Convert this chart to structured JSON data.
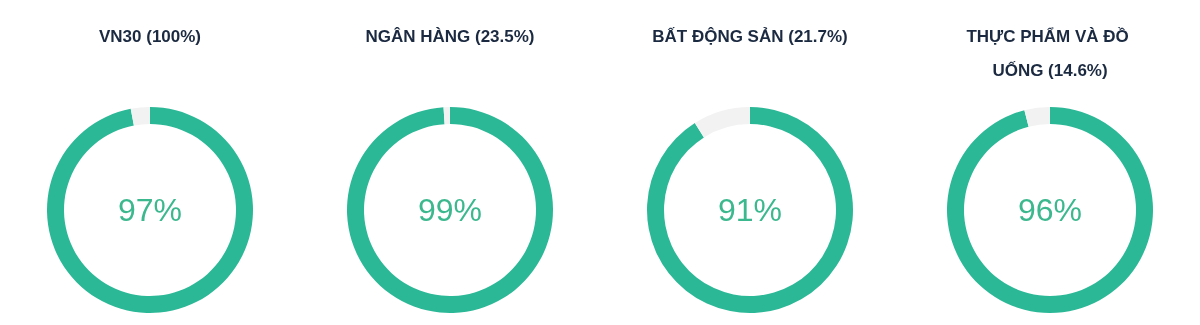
{
  "chart_data": [
    {
      "type": "donut",
      "title": "VN30 (100%)",
      "categories": [
        null,
        null
      ],
      "values": [
        97,
        3
      ],
      "colors": [
        "#2bb896",
        "#f2f2f2"
      ],
      "value_labels": [
        "97%",
        null
      ]
    },
    {
      "type": "donut",
      "title": "NGÂN HÀNG (23.5%)",
      "categories": [
        null,
        null
      ],
      "values": [
        99,
        1
      ],
      "colors": [
        "#2bb896",
        "#f2f2f2"
      ],
      "value_labels": [
        "99%",
        null
      ]
    },
    {
      "type": "donut",
      "title": "BẤT ĐỘNG SẢN (21.7%)",
      "categories": [
        null,
        null
      ],
      "values": [
        91,
        9
      ],
      "colors": [
        "#2bb896",
        "#f2f2f2"
      ],
      "value_labels": [
        "91%",
        null
      ]
    },
    {
      "type": "donut",
      "title": "THỰC PHẨM VÀ ĐỒ UỐNG (14.6%)",
      "categories": [
        null,
        null
      ],
      "values": [
        96,
        4
      ],
      "colors": [
        "#2bb896",
        "#f2f2f2"
      ],
      "value_labels": [
        "96%",
        null
      ]
    }
  ]
}
